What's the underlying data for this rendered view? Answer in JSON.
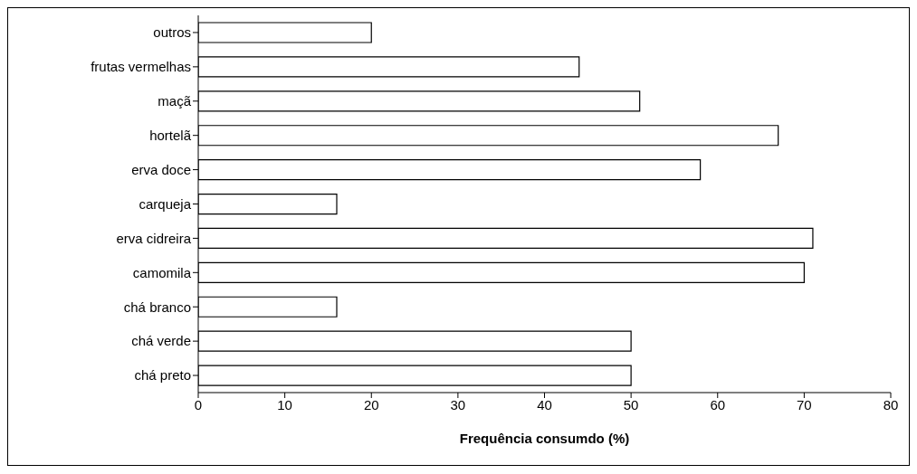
{
  "chart_data": {
    "type": "bar",
    "orientation": "horizontal",
    "xlabel": "Frequência consumdo (%)",
    "categories": [
      "outros",
      "frutas vermelhas",
      "maçã",
      "hortelã",
      "erva doce",
      "carqueja",
      "erva cidreira",
      "camomila",
      "chá branco",
      "chá verde",
      "chá preto"
    ],
    "values": [
      20,
      44,
      51,
      67,
      58,
      16,
      71,
      70,
      16,
      50,
      50
    ],
    "color": "#ffffff",
    "xlim": [
      0,
      80
    ],
    "xticks": [
      0,
      10,
      20,
      30,
      40,
      50,
      60,
      70,
      80
    ],
    "grid": false,
    "legend": false
  }
}
